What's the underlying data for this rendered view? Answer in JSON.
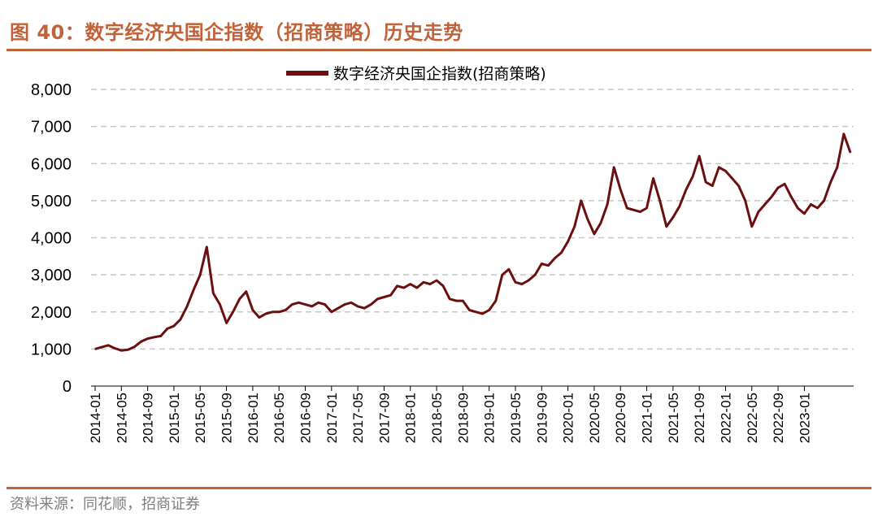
{
  "figure": {
    "title": "图 40：数字经济央国企指数（招商策略）历史走势",
    "source": "资料来源：同花顺，招商证券"
  },
  "chart_data": {
    "type": "line",
    "title": "",
    "xlabel": "",
    "ylabel": "",
    "ylim": [
      0,
      8000
    ],
    "yticks": [
      0,
      1000,
      2000,
      3000,
      4000,
      5000,
      6000,
      7000,
      8000
    ],
    "ytick_labels": [
      "0",
      "1,000",
      "2,000",
      "3,000",
      "4,000",
      "5,000",
      "6,000",
      "7,000",
      "8,000"
    ],
    "xticks": [
      "2014-01",
      "2014-05",
      "2014-09",
      "2015-01",
      "2015-05",
      "2015-09",
      "2016-01",
      "2016-05",
      "2016-09",
      "2017-01",
      "2017-05",
      "2017-09",
      "2018-01",
      "2018-05",
      "2018-09",
      "2019-01",
      "2019-05",
      "2019-09",
      "2020-01",
      "2020-05",
      "2020-09",
      "2021-01",
      "2021-05",
      "2021-09",
      "2022-01",
      "2022-05",
      "2022-09",
      "2023-01"
    ],
    "grid": "horizontal dashed",
    "legend_position": "top",
    "line_color": "#6b0f0f",
    "series": [
      {
        "name": "数字经济央国企指数(招商策略)",
        "x": [
          "2014-01",
          "2014-02",
          "2014-03",
          "2014-04",
          "2014-05",
          "2014-06",
          "2014-07",
          "2014-08",
          "2014-09",
          "2014-10",
          "2014-11",
          "2014-12",
          "2015-01",
          "2015-02",
          "2015-03",
          "2015-04",
          "2015-05",
          "2015-06",
          "2015-07",
          "2015-08",
          "2015-09",
          "2015-10",
          "2015-11",
          "2015-12",
          "2016-01",
          "2016-02",
          "2016-03",
          "2016-04",
          "2016-05",
          "2016-06",
          "2016-07",
          "2016-08",
          "2016-09",
          "2016-10",
          "2016-11",
          "2016-12",
          "2017-01",
          "2017-02",
          "2017-03",
          "2017-04",
          "2017-05",
          "2017-06",
          "2017-07",
          "2017-08",
          "2017-09",
          "2017-10",
          "2017-11",
          "2017-12",
          "2018-01",
          "2018-02",
          "2018-03",
          "2018-04",
          "2018-05",
          "2018-06",
          "2018-07",
          "2018-08",
          "2018-09",
          "2018-10",
          "2018-11",
          "2018-12",
          "2019-01",
          "2019-02",
          "2019-03",
          "2019-04",
          "2019-05",
          "2019-06",
          "2019-07",
          "2019-08",
          "2019-09",
          "2019-10",
          "2019-11",
          "2019-12",
          "2020-01",
          "2020-02",
          "2020-03",
          "2020-04",
          "2020-05",
          "2020-06",
          "2020-07",
          "2020-08",
          "2020-09",
          "2020-10",
          "2020-11",
          "2020-12",
          "2021-01",
          "2021-02",
          "2021-03",
          "2021-04",
          "2021-05",
          "2021-06",
          "2021-07",
          "2021-08",
          "2021-09",
          "2021-10",
          "2021-11",
          "2021-12",
          "2022-01",
          "2022-02",
          "2022-03",
          "2022-04",
          "2022-05",
          "2022-06",
          "2022-07",
          "2022-08",
          "2022-09",
          "2022-10",
          "2022-11",
          "2022-12",
          "2023-01",
          "2023-02",
          "2023-03",
          "2023-04",
          "2023-05",
          "2023-06",
          "2023-07",
          "2023-08"
        ],
        "values": [
          1000,
          1050,
          1100,
          1020,
          960,
          980,
          1060,
          1200,
          1280,
          1320,
          1350,
          1550,
          1620,
          1800,
          2150,
          2600,
          3000,
          3750,
          2500,
          2200,
          1700,
          2000,
          2350,
          2550,
          2050,
          1850,
          1950,
          2000,
          2000,
          2050,
          2200,
          2250,
          2200,
          2150,
          2250,
          2200,
          2000,
          2100,
          2200,
          2250,
          2150,
          2100,
          2200,
          2350,
          2400,
          2450,
          2700,
          2650,
          2750,
          2650,
          2800,
          2750,
          2850,
          2700,
          2350,
          2300,
          2300,
          2050,
          2000,
          1950,
          2050,
          2300,
          3000,
          3150,
          2800,
          2750,
          2850,
          3000,
          3300,
          3250,
          3450,
          3600,
          3900,
          4300,
          5000,
          4500,
          4100,
          4400,
          4900,
          5900,
          5300,
          4800,
          4750,
          4700,
          4800,
          5600,
          5000,
          4300,
          4550,
          4850,
          5300,
          5650,
          6200,
          5500,
          5400,
          5900,
          5800,
          5600,
          5400,
          5000,
          4300,
          4700,
          4900,
          5100,
          5350,
          5450,
          5100,
          4800,
          4650,
          4900,
          4800,
          5000,
          5500,
          5900,
          6800,
          6300
        ]
      }
    ]
  }
}
